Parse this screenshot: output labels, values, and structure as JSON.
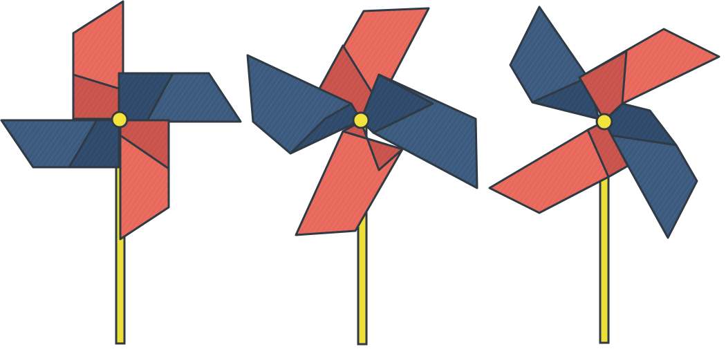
{
  "colors": {
    "background": "#ffffff",
    "red_blade": "#e8685c",
    "red_blade_dark": "#c8534c",
    "blue_blade": "#3b5a7e",
    "blue_blade_dark": "#2f4a6a",
    "outline": "#2f3a44",
    "stick": "#ecdf3a",
    "hub": "#f2e33d"
  },
  "pinwheels": [
    {
      "name": "pinwheel-left"
    },
    {
      "name": "pinwheel-middle"
    },
    {
      "name": "pinwheel-right"
    }
  ]
}
